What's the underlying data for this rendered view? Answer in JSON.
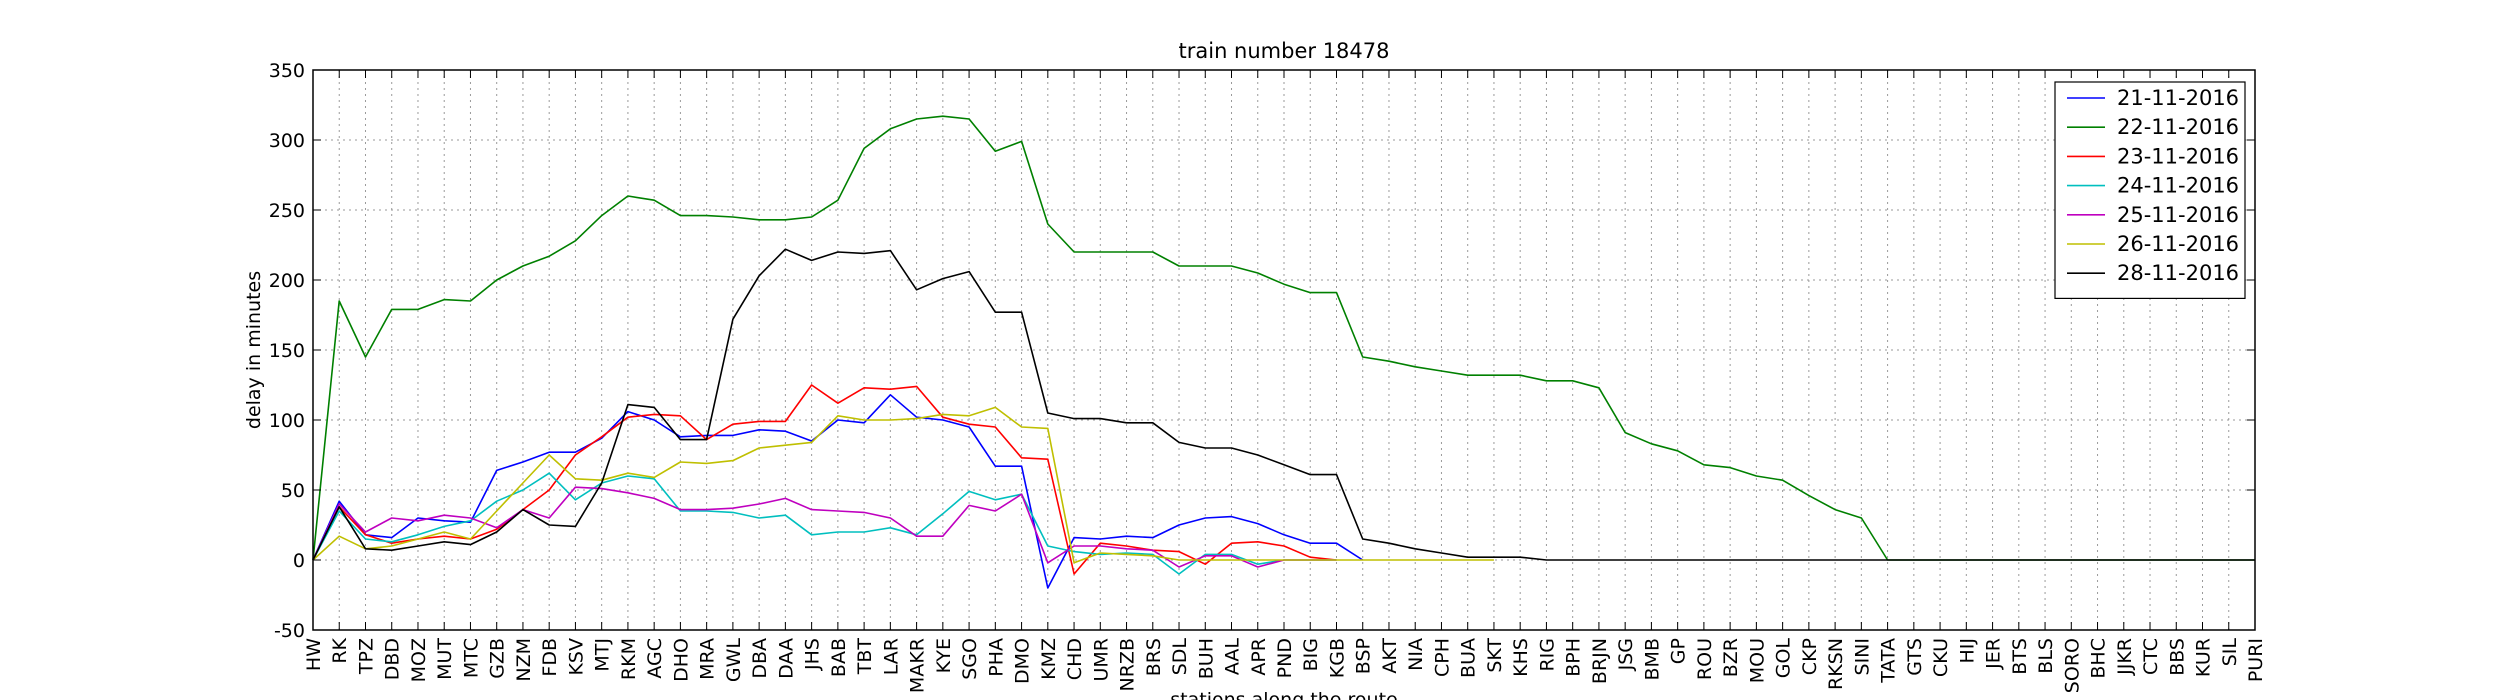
{
  "chart_data": {
    "type": "line",
    "title": "train number 18478",
    "xlabel": "stations along the route",
    "ylabel": "delay in minutes",
    "ylim": [
      -50,
      350
    ],
    "yticks": [
      -50,
      0,
      50,
      100,
      150,
      200,
      250,
      300,
      350
    ],
    "grid": true,
    "legend_position": "top-right",
    "categories": [
      "HW",
      "RK",
      "TPZ",
      "DBD",
      "MOZ",
      "MUT",
      "MTC",
      "GZB",
      "NZM",
      "FDB",
      "KSV",
      "MTJ",
      "RKM",
      "AGC",
      "DHO",
      "MRA",
      "GWL",
      "DBA",
      "DAA",
      "JHS",
      "BAB",
      "TBT",
      "LAR",
      "MAKR",
      "KYE",
      "SGO",
      "PHA",
      "DMO",
      "KMZ",
      "CHD",
      "UMR",
      "NRZB",
      "BRS",
      "SDL",
      "BUH",
      "AAL",
      "APR",
      "PND",
      "BIG",
      "KGB",
      "BSP",
      "AKT",
      "NIA",
      "CPH",
      "BUA",
      "SKT",
      "KHS",
      "RIG",
      "BPH",
      "BRJN",
      "JSG",
      "BMB",
      "GP",
      "ROU",
      "BZR",
      "MOU",
      "GOL",
      "CKP",
      "RKSN",
      "SINI",
      "TATA",
      "GTS",
      "CKU",
      "HIJ",
      "JER",
      "BTS",
      "BLS",
      "SORO",
      "BHC",
      "JJKR",
      "CTC",
      "BBS",
      "KUR",
      "SIL",
      "PURI"
    ],
    "series": [
      {
        "name": "21-11-2016",
        "color": "#0000ff",
        "values": [
          0,
          42,
          18,
          16,
          30,
          28,
          27,
          64,
          70,
          77,
          77,
          87,
          106,
          100,
          88,
          89,
          89,
          93,
          92,
          85,
          100,
          98,
          118,
          102,
          100,
          95,
          67,
          67,
          -20,
          16,
          15,
          17,
          16,
          25,
          30,
          31,
          26,
          18,
          12,
          12,
          0,
          null,
          null,
          null,
          null,
          null,
          null,
          null,
          null,
          null,
          null,
          null,
          null,
          null,
          null,
          null,
          null,
          null,
          null,
          null,
          null,
          null,
          null,
          null,
          null,
          null,
          null,
          null,
          null,
          null,
          null,
          null,
          null,
          null,
          null
        ]
      },
      {
        "name": "22-11-2016",
        "color": "#008000",
        "values": [
          0,
          185,
          145,
          179,
          179,
          186,
          185,
          200,
          210,
          217,
          228,
          246,
          260,
          257,
          246,
          246,
          245,
          243,
          243,
          245,
          257,
          294,
          308,
          315,
          317,
          315,
          292,
          299,
          240,
          220,
          220,
          220,
          220,
          210,
          210,
          210,
          205,
          197,
          191,
          191,
          145,
          142,
          138,
          135,
          132,
          132,
          132,
          128,
          128,
          123,
          91,
          83,
          78,
          68,
          66,
          60,
          57,
          46,
          36,
          30,
          0,
          0,
          0,
          0,
          0,
          0,
          0,
          0,
          0,
          0,
          0,
          0,
          0,
          0,
          0
        ]
      },
      {
        "name": "23-11-2016",
        "color": "#ff0000",
        "values": [
          0,
          38,
          18,
          12,
          15,
          17,
          15,
          22,
          36,
          50,
          75,
          88,
          102,
          104,
          103,
          86,
          97,
          99,
          99,
          125,
          112,
          123,
          122,
          124,
          102,
          97,
          95,
          73,
          72,
          -10,
          12,
          10,
          7,
          6,
          -3,
          12,
          13,
          10,
          2,
          0,
          null,
          null,
          null,
          null,
          null,
          null,
          null,
          null,
          null,
          null,
          null,
          null,
          null,
          null,
          null,
          null,
          null,
          null,
          null,
          null,
          null,
          null,
          null,
          null,
          null,
          null,
          null,
          null,
          null,
          null,
          null,
          null,
          null,
          null,
          null
        ]
      },
      {
        "name": "24-11-2016",
        "color": "#00bfbf",
        "values": [
          0,
          35,
          15,
          13,
          18,
          24,
          28,
          42,
          50,
          62,
          43,
          55,
          60,
          58,
          35,
          35,
          34,
          30,
          32,
          18,
          20,
          20,
          23,
          18,
          33,
          49,
          43,
          47,
          10,
          6,
          4,
          5,
          4,
          -10,
          4,
          4,
          -3,
          0,
          0,
          0,
          null,
          null,
          null,
          null,
          null,
          null,
          null,
          null,
          null,
          null,
          null,
          null,
          null,
          null,
          null,
          null,
          null,
          null,
          null,
          null,
          null,
          null,
          null,
          null,
          null,
          null,
          null,
          null,
          null,
          null,
          null,
          null,
          null,
          null,
          null
        ]
      },
      {
        "name": "25-11-2016",
        "color": "#bf00bf",
        "values": [
          0,
          40,
          20,
          30,
          28,
          32,
          30,
          23,
          36,
          30,
          52,
          51,
          48,
          44,
          36,
          36,
          37,
          40,
          44,
          36,
          35,
          34,
          30,
          17,
          17,
          39,
          35,
          47,
          -2,
          10,
          10,
          8,
          7,
          -5,
          3,
          3,
          -5,
          0,
          0,
          0,
          null,
          null,
          null,
          null,
          null,
          null,
          null,
          null,
          null,
          null,
          null,
          null,
          null,
          null,
          null,
          null,
          null,
          null,
          null,
          null,
          null,
          null,
          null,
          null,
          null,
          null,
          null,
          null,
          null,
          null,
          null,
          null,
          null,
          null,
          null
        ]
      },
      {
        "name": "26-11-2016",
        "color": "#bfbf00",
        "values": [
          0,
          17,
          8,
          10,
          15,
          20,
          15,
          35,
          55,
          75,
          58,
          57,
          62,
          59,
          70,
          69,
          71,
          80,
          82,
          84,
          103,
          100,
          100,
          101,
          104,
          103,
          109,
          95,
          94,
          -2,
          5,
          4,
          3,
          0,
          0,
          0,
          0,
          0,
          0,
          0,
          0,
          0,
          0,
          0,
          0,
          0,
          null,
          null,
          null,
          null,
          null,
          null,
          null,
          null,
          null,
          null,
          null,
          null,
          null,
          null,
          null,
          null,
          null,
          null,
          null,
          null,
          null,
          null,
          null,
          null,
          null,
          null,
          null,
          null,
          null
        ]
      },
      {
        "name": "28-11-2016",
        "color": "#000000",
        "values": [
          0,
          38,
          8,
          7,
          10,
          13,
          11,
          20,
          36,
          25,
          24,
          55,
          111,
          109,
          86,
          86,
          172,
          203,
          222,
          214,
          220,
          219,
          221,
          193,
          201,
          206,
          177,
          177,
          105,
          101,
          101,
          98,
          98,
          84,
          80,
          80,
          75,
          68,
          61,
          61,
          15,
          12,
          8,
          5,
          2,
          2,
          2,
          0,
          0,
          0,
          0,
          0,
          0,
          0,
          0,
          0,
          0,
          0,
          0,
          0,
          0,
          0,
          0,
          0,
          0,
          0,
          0,
          0,
          0,
          0,
          0,
          0,
          0,
          0,
          0
        ]
      }
    ]
  }
}
